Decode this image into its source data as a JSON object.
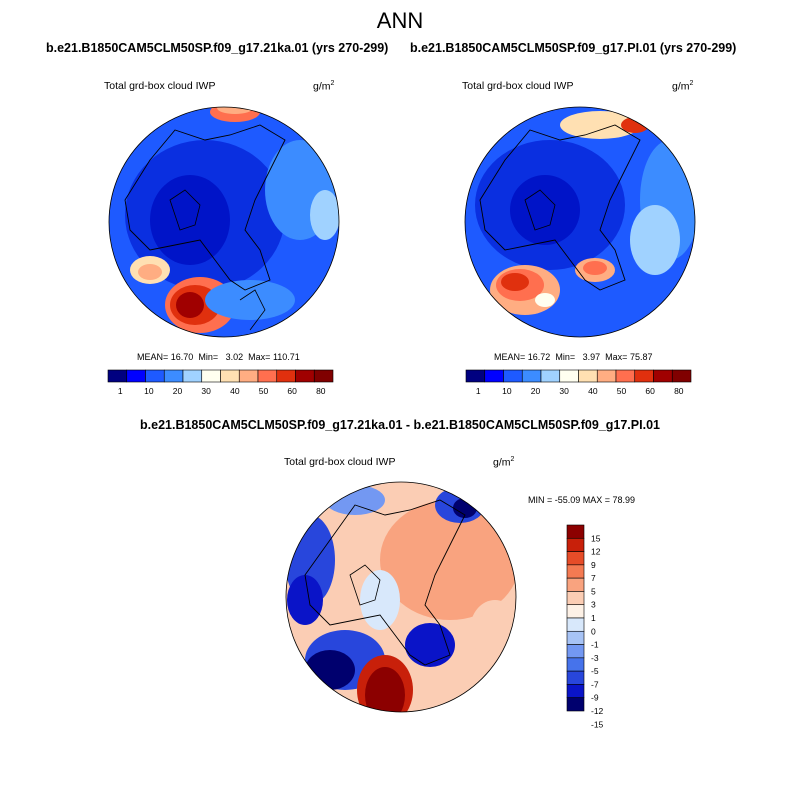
{
  "figure": {
    "title": "ANN"
  },
  "colors": {
    "cb1": [
      "#000080",
      "#0000ff",
      "#1e5aff",
      "#3c8cff",
      "#a0d2ff",
      "#fffff0",
      "#ffe0b2",
      "#ffad82",
      "#ff6f4f",
      "#e0300e",
      "#a00000",
      "#800000"
    ],
    "cb2": [
      "#00006e",
      "#0a14c8",
      "#2846dc",
      "#4673eb",
      "#7398f2",
      "#a7c3f5",
      "#d8e8fb",
      "#fdf1e6",
      "#fbcdb4",
      "#f9a37f",
      "#f47a52",
      "#e64c28",
      "#c8200a",
      "#8c0000"
    ]
  },
  "chart_data": [
    {
      "type": "heatmap",
      "projection": "polar-stereographic (north)",
      "title": "b.e21.B1850CAM5CLM50SP.f09_g17.21ka.01 (yrs 270-299)",
      "variable": "Total grd-box cloud IWP",
      "units": "g/m",
      "units_exp": "2",
      "stats": {
        "mean_label": "MEAN=",
        "mean": "16.70",
        "min_label": "Min=",
        "min": "3.02",
        "max_label": "Max=",
        "max": "110.71"
      },
      "colorbar_levels": [
        "1",
        "10",
        "20",
        "30",
        "40",
        "50",
        "60",
        "80"
      ]
    },
    {
      "type": "heatmap",
      "projection": "polar-stereographic (north)",
      "title": "b.e21.B1850CAM5CLM50SP.f09_g17.PI.01 (yrs 270-299)",
      "variable": "Total grd-box cloud IWP",
      "units": "g/m",
      "units_exp": "2",
      "stats": {
        "mean_label": "MEAN=",
        "mean": "16.72",
        "min_label": "Min=",
        "min": "3.97",
        "max_label": "Max=",
        "max": "75.87"
      },
      "colorbar_levels": [
        "1",
        "10",
        "20",
        "30",
        "40",
        "50",
        "60",
        "80"
      ]
    },
    {
      "type": "heatmap",
      "projection": "polar-stereographic (north)",
      "title": "b.e21.B1850CAM5CLM50SP.f09_g17.21ka.01 - b.e21.B1850CAM5CLM50SP.f09_g17.PI.01",
      "variable": "Total grd-box cloud IWP",
      "units": "g/m",
      "units_exp": "2",
      "stats_text": "MIN = -55.09 MAX =  78.99",
      "colorbar_levels": [
        "15",
        "12",
        "9",
        "7",
        "5",
        "3",
        "1",
        "0",
        "-1",
        "-3",
        "-5",
        "-7",
        "-9",
        "-12",
        "-15"
      ]
    }
  ]
}
